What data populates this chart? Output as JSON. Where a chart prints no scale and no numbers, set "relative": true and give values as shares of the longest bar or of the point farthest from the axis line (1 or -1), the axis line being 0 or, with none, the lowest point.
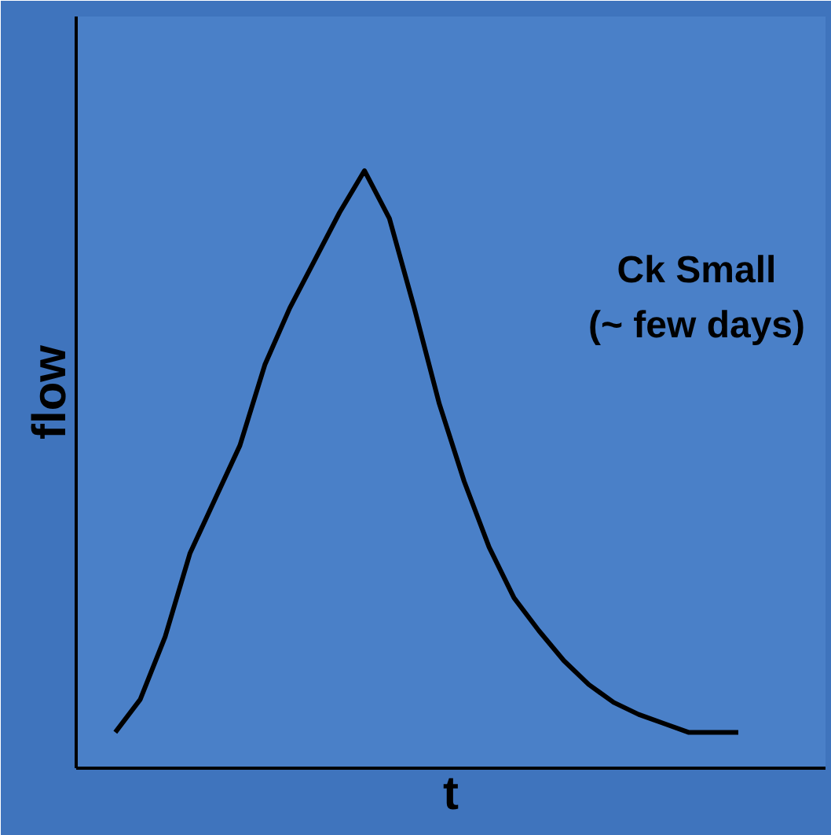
{
  "chart_data": {
    "type": "line",
    "relative": true,
    "xlabel": "t",
    "ylabel": "flow",
    "categories": [
      null,
      null,
      null,
      null,
      null,
      null,
      null,
      null,
      null,
      null,
      null,
      null,
      null,
      null,
      null,
      null,
      null,
      null,
      null,
      null,
      null,
      null,
      null,
      null,
      null,
      null
    ],
    "series": [
      {
        "color": "#000000",
        "values": [
          0.06,
          0.115,
          0.22,
          0.36,
          0.45,
          0.54,
          0.675,
          0.77,
          0.85,
          0.93,
          1.0,
          0.92,
          0.77,
          0.61,
          0.48,
          0.37,
          0.285,
          0.23,
          0.18,
          0.14,
          0.11,
          0.09,
          0.075,
          0.06,
          0.06,
          0.06
        ]
      }
    ],
    "annotations": [
      "Ck Small\n(~ few days)"
    ],
    "tick_labels": false,
    "marker": "none",
    "line_style": "solid"
  }
}
